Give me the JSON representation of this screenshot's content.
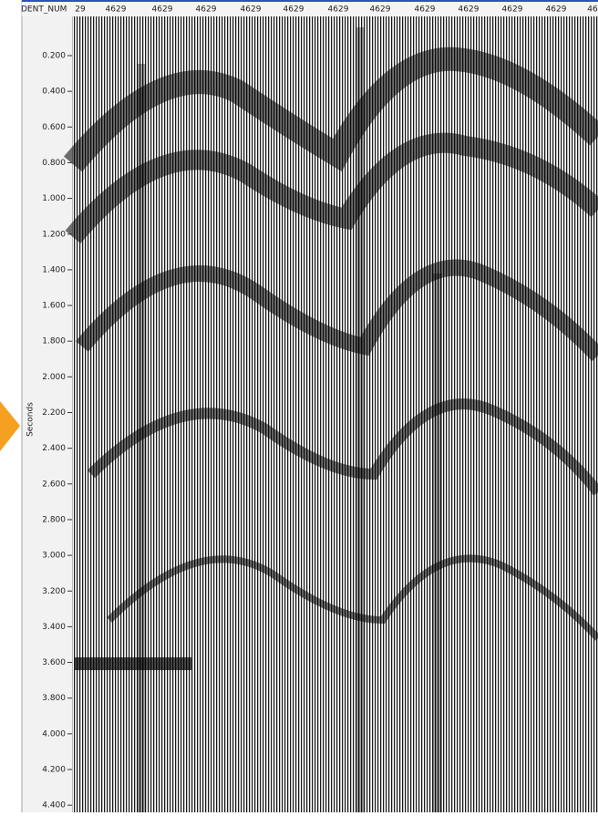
{
  "header": {
    "label": "DENT_NUM",
    "ticks": [
      "29",
      "4629",
      "4629",
      "4629",
      "4629",
      "4629",
      "4629",
      "4629",
      "4629",
      "4629",
      "4629",
      "4629",
      "46"
    ]
  },
  "axis": {
    "title": "Seconds",
    "labels": [
      "0.200",
      "0.400",
      "0.600",
      "0.800",
      "1.000",
      "1.200",
      "1.400",
      "1.600",
      "1.800",
      "2.000",
      "2.200",
      "2.400",
      "2.600",
      "2.800",
      "3.000",
      "3.200",
      "3.400",
      "3.600",
      "3.800",
      "4.000",
      "4.200",
      "4.400"
    ]
  }
}
